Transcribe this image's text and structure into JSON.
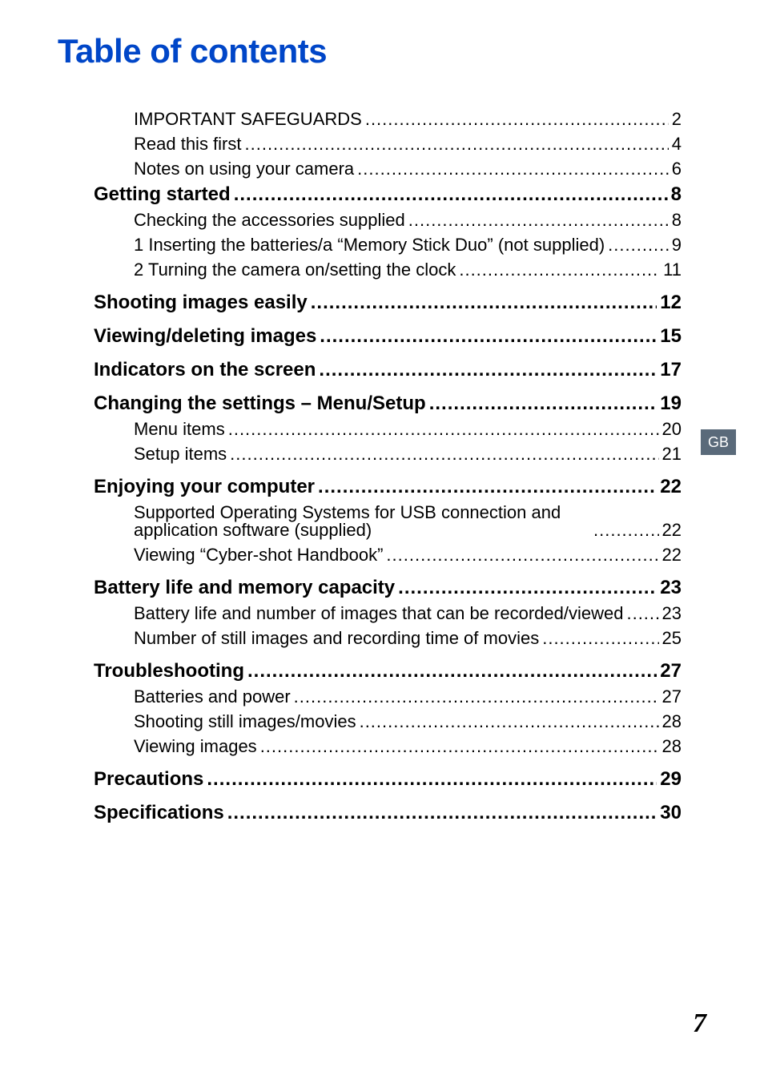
{
  "title": "Table of contents",
  "side_tab": "GB",
  "footer_page": "7",
  "colors": {
    "title_color": "#0046c8",
    "text_color": "#000000",
    "tab_bg": "#5a6a7a",
    "tab_fg": "#ffffff",
    "page_bg": "#ffffff"
  },
  "typography": {
    "title_fontsize": 42,
    "section_fontsize": 24,
    "sub_fontsize": 22,
    "footer_fontsize": 34
  },
  "dot_leader": " .................................................................................................................................................................................",
  "toc": [
    {
      "type": "sub",
      "label": "IMPORTANT SAFEGUARDS",
      "page": "2"
    },
    {
      "type": "sub",
      "label": "Read this first",
      "page": "4"
    },
    {
      "type": "sub",
      "label": "Notes on using your camera",
      "page": "6"
    },
    {
      "type": "section",
      "label": "Getting started",
      "page": "8"
    },
    {
      "type": "sub",
      "label": "Checking the accessories supplied",
      "page": "8"
    },
    {
      "type": "sub",
      "label": "1 Inserting the batteries/a “Memory Stick Duo” (not supplied)",
      "page": "9"
    },
    {
      "type": "sub",
      "label": "2 Turning the camera on/setting the clock",
      "page": "11"
    },
    {
      "type": "section",
      "label": "Shooting images easily",
      "page": "12",
      "gap": true
    },
    {
      "type": "section",
      "label": "Viewing/deleting images",
      "page": "15",
      "gap": true
    },
    {
      "type": "section",
      "label": "Indicators on the screen",
      "page": "17",
      "gap": true
    },
    {
      "type": "section",
      "label": "Changing the settings – Menu/Setup",
      "page": "19",
      "gap": true
    },
    {
      "type": "sub",
      "label": "Menu items",
      "page": "20"
    },
    {
      "type": "sub",
      "label": "Setup items",
      "page": "21"
    },
    {
      "type": "section",
      "label": "Enjoying your computer",
      "page": "22",
      "gap": true
    },
    {
      "type": "sub",
      "label": "Supported Operating Systems for USB connection and application software (supplied)",
      "page": "22",
      "wrap": true
    },
    {
      "type": "sub",
      "label": "Viewing “Cyber-shot Handbook”",
      "page": "22"
    },
    {
      "type": "section",
      "label": "Battery life and memory capacity",
      "page": "23",
      "gap": true
    },
    {
      "type": "sub",
      "label": "Battery life and number of images that can be recorded/viewed",
      "page": "23"
    },
    {
      "type": "sub",
      "label": "Number of still images and recording time of movies",
      "page": "25"
    },
    {
      "type": "section",
      "label": "Troubleshooting",
      "page": "27",
      "gap": true
    },
    {
      "type": "sub",
      "label": "Batteries and power",
      "page": "27"
    },
    {
      "type": "sub",
      "label": "Shooting still images/movies",
      "page": "28"
    },
    {
      "type": "sub",
      "label": "Viewing images",
      "page": "28"
    },
    {
      "type": "section",
      "label": "Precautions",
      "page": "29",
      "gap": true
    },
    {
      "type": "section",
      "label": "Specifications",
      "page": "30",
      "gap": true
    }
  ]
}
